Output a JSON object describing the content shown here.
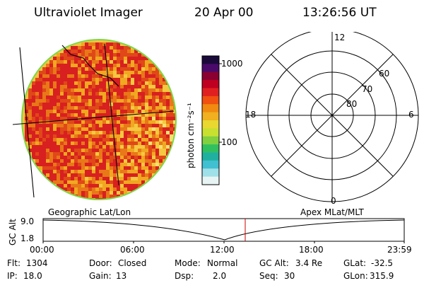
{
  "header": {
    "title": "Ultraviolet Imager",
    "date": "20 Apr 00",
    "time": "13:26:56 UT"
  },
  "colorbar": {
    "label": "photon cm⁻²s⁻¹",
    "ticks": [
      "1000",
      "100"
    ],
    "colors": [
      "#1a0a3a",
      "#4a0a6a",
      "#8a0030",
      "#c00020",
      "#e02020",
      "#f05010",
      "#f08a10",
      "#f0b020",
      "#e8d830",
      "#c8e030",
      "#80d040",
      "#30c060",
      "#20b0a0",
      "#40c0d0",
      "#a0e0e8",
      "#e8f4f4"
    ]
  },
  "polar_plot": {
    "mlt_labels": [
      "12",
      "18",
      "6",
      "0"
    ],
    "mlat_labels": [
      "60",
      "70",
      "80"
    ]
  },
  "plot_labels": {
    "left": "Geographic Lat/Lon",
    "right": "Apex MLat/MLT"
  },
  "altitude_panel": {
    "ylabel": "GC Alt",
    "yticks": [
      "9.0",
      "1.8"
    ],
    "xticks": [
      "00:00",
      "06:00",
      "12:00",
      "18:00",
      "23:59"
    ],
    "current_time_fraction": 0.561
  },
  "info": {
    "flt_label": "Flt:",
    "flt_value": "1304",
    "door_label": "Door:",
    "door_value": "Closed",
    "mode_label": "Mode:",
    "mode_value": "Normal",
    "gcalt_label": "GC Alt:",
    "gcalt_value": "3.4 Re",
    "glat_label": "GLat:",
    "glat_value": "-32.5",
    "ip_label": "IP:",
    "ip_value": "18.0",
    "gain_label": "Gain:",
    "gain_value": "13",
    "dsp_label": "Dsp:",
    "dsp_value": "2.0",
    "seq_label": "Seq:",
    "seq_value": "30",
    "glon_label": "GLon:",
    "glon_value": "315.9"
  }
}
